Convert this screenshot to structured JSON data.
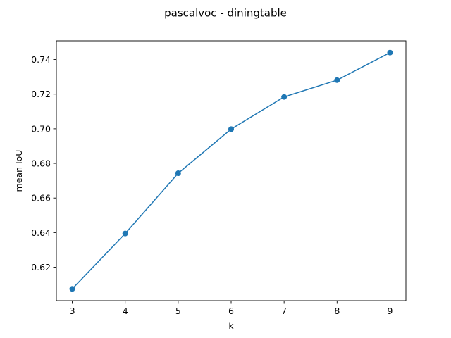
{
  "chart_data": {
    "type": "line",
    "title": "pascalvoc - diningtable",
    "xlabel": "k",
    "ylabel": "mean IoU",
    "x": [
      3,
      4,
      5,
      6,
      7,
      8,
      9
    ],
    "series": [
      {
        "values": [
          0.6075,
          0.6395,
          0.6743,
          0.6998,
          0.7184,
          0.7281,
          0.744
        ],
        "color": "#1f77b4",
        "marker": "circle"
      }
    ],
    "xticks": [
      "3",
      "4",
      "5",
      "6",
      "7",
      "8",
      "9"
    ],
    "yticks": [
      "0.62",
      "0.64",
      "0.66",
      "0.68",
      "0.70",
      "0.72",
      "0.74"
    ],
    "xlim": [
      2.7,
      9.3
    ],
    "ylim": [
      0.6007,
      0.7508
    ],
    "grid": false,
    "legend": "none"
  }
}
